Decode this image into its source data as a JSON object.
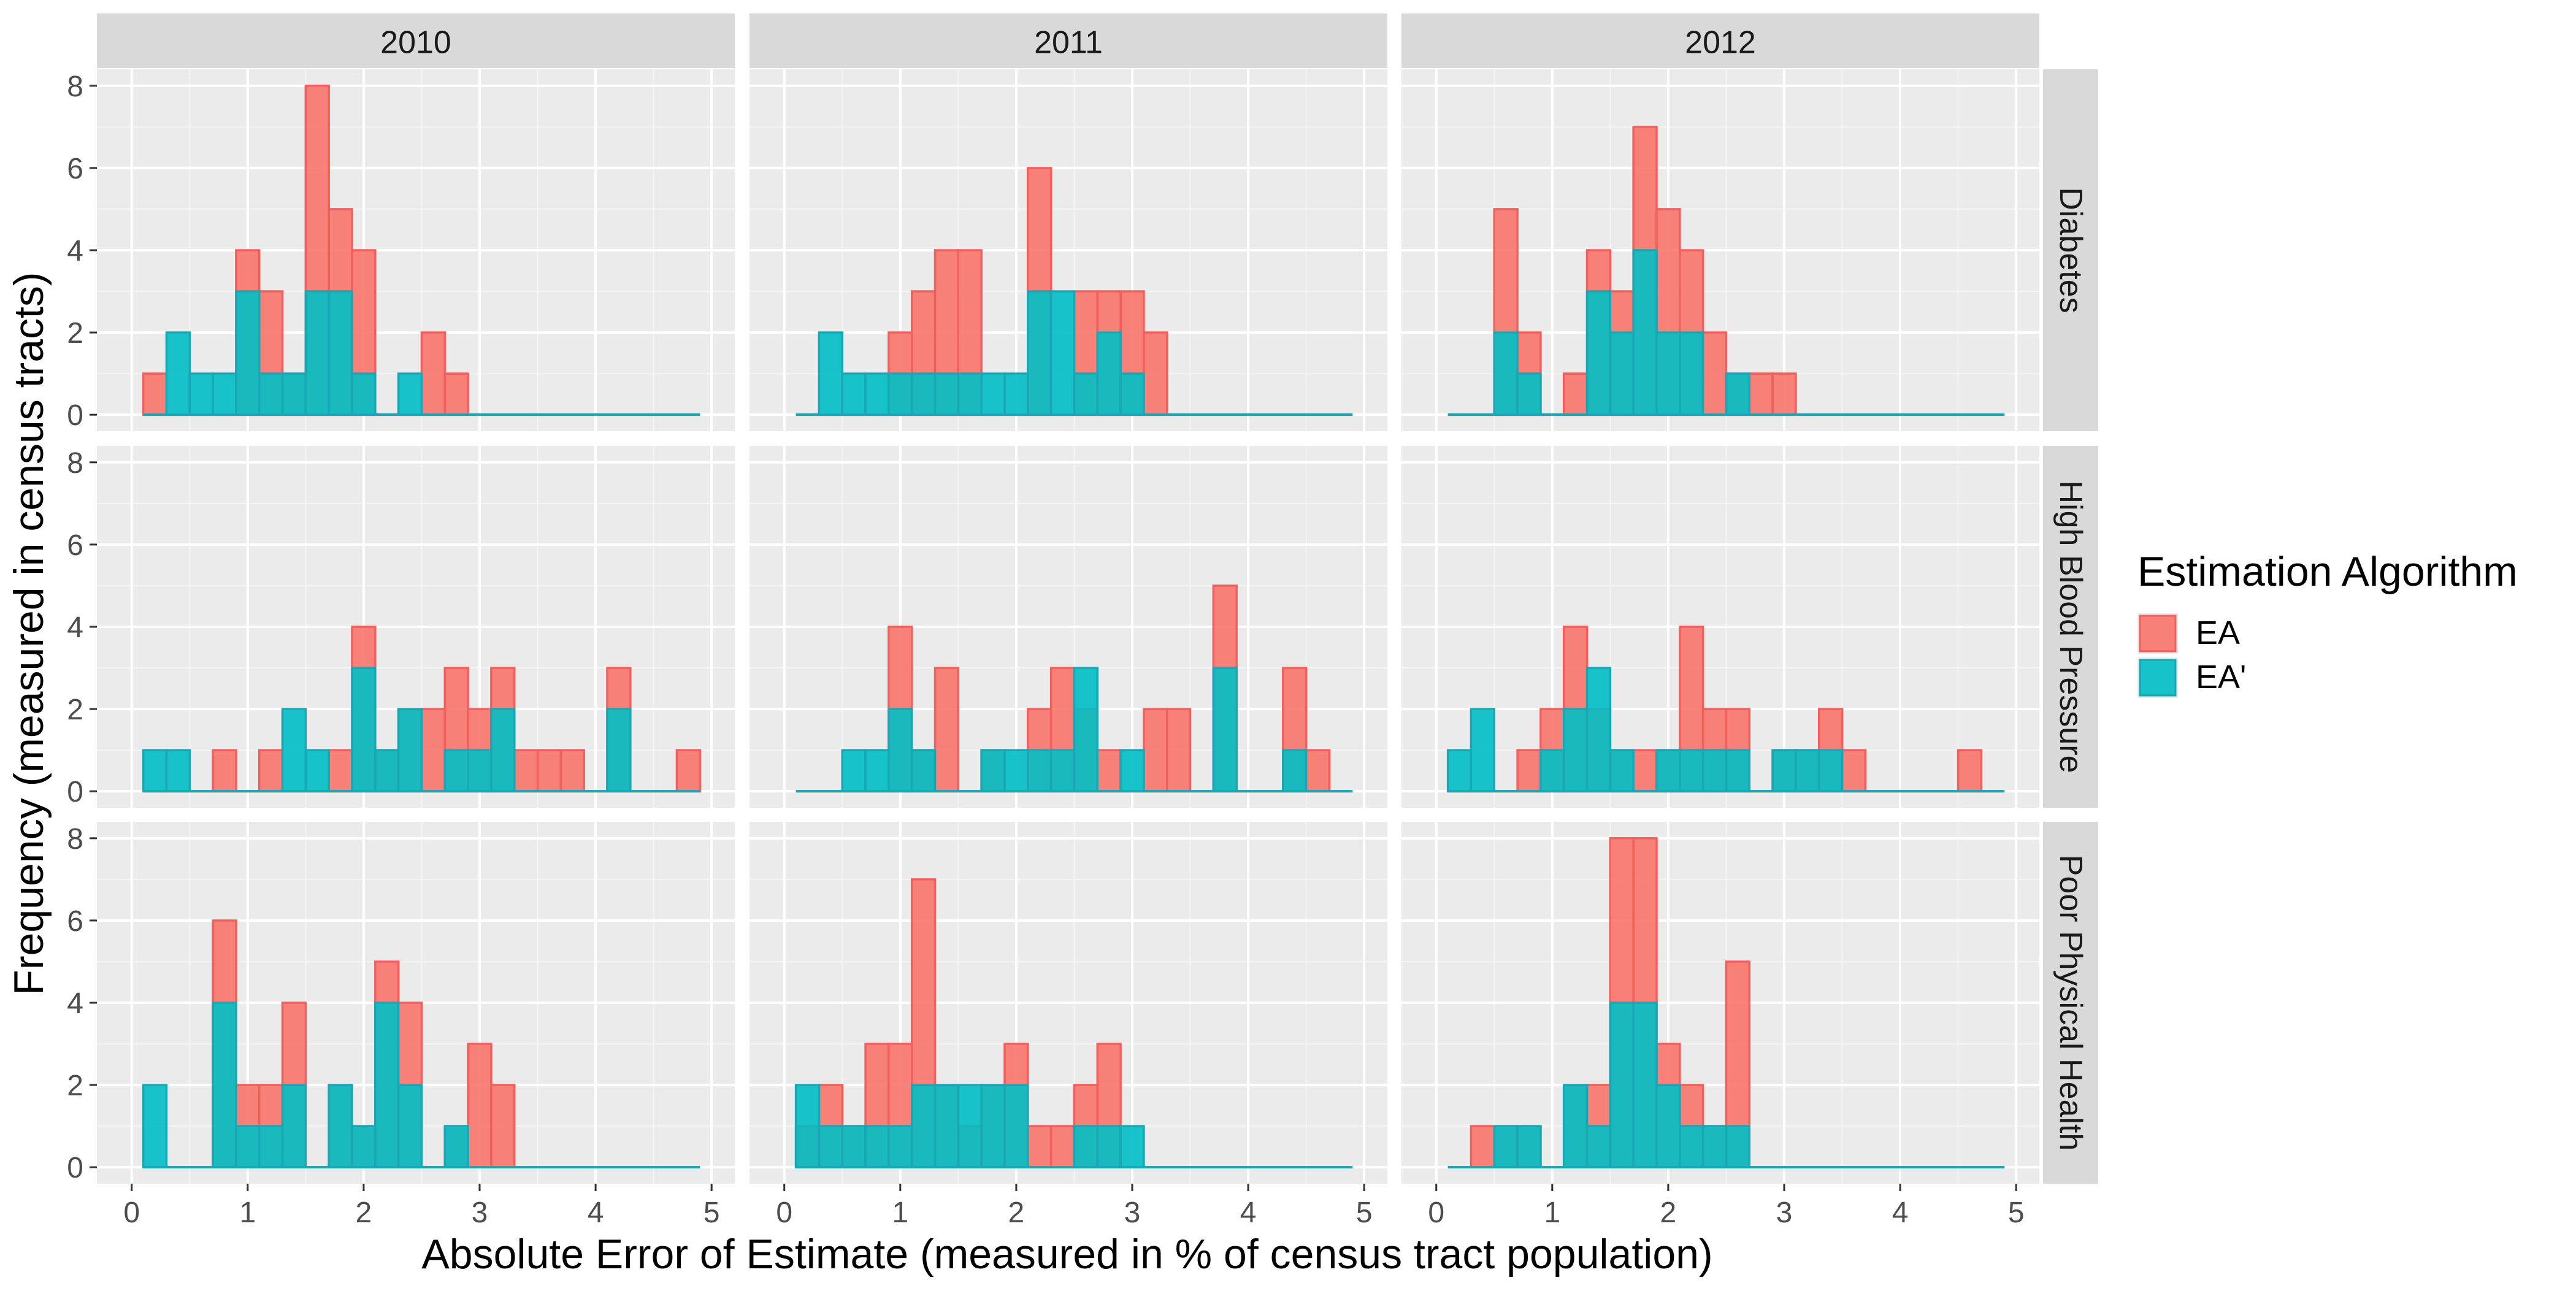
{
  "chart_data": {
    "type": "bar",
    "subtype": "faceted histogram (overlaid series)",
    "xlabel": "Absolute Error of Estimate (measured in % of census tract population)",
    "ylabel": "Frequency (measured in census tracts)",
    "xlim": [
      -0.3,
      5.2
    ],
    "ylim": [
      -0.4,
      8.4
    ],
    "x_ticks": [
      0,
      1,
      2,
      3,
      4,
      5
    ],
    "y_ticks": [
      0,
      2,
      4,
      6,
      8
    ],
    "grid": true,
    "bin_width": 0.2,
    "bin_start": 0.1,
    "bin_count": 24,
    "columns": [
      "2010",
      "2011",
      "2012"
    ],
    "rows": [
      "Diabetes",
      "High Blood Pressure",
      "Poor Physical Health"
    ],
    "legend": {
      "title": "Estimation Algorithm",
      "position": "right",
      "items": [
        {
          "label": "EA",
          "fill": "#F8766D",
          "stroke": "#F25F5C"
        },
        {
          "label": "EA'",
          "fill": "#00BFC4",
          "stroke": "#1AA7B5"
        }
      ]
    },
    "panels": [
      {
        "column": "2010",
        "row": "Diabetes",
        "EA": [
          1,
          0,
          0,
          0,
          4,
          3,
          1,
          8,
          5,
          4,
          0,
          0,
          2,
          1,
          0,
          0,
          0,
          0,
          0,
          0,
          0,
          0,
          0,
          0
        ],
        "EA'": [
          0,
          2,
          1,
          1,
          3,
          1,
          1,
          3,
          3,
          1,
          0,
          1,
          0,
          0,
          0,
          0,
          0,
          0,
          0,
          0,
          0,
          0,
          0,
          0
        ]
      },
      {
        "column": "2011",
        "row": "Diabetes",
        "EA": [
          0,
          0,
          0,
          0,
          2,
          3,
          4,
          4,
          0,
          0,
          6,
          0,
          3,
          3,
          3,
          2,
          0,
          0,
          0,
          0,
          0,
          0,
          0,
          0
        ],
        "EA'": [
          0,
          2,
          1,
          1,
          1,
          1,
          1,
          1,
          1,
          1,
          3,
          3,
          1,
          2,
          1,
          0,
          0,
          0,
          0,
          0,
          0,
          0,
          0,
          0
        ]
      },
      {
        "column": "2012",
        "row": "Diabetes",
        "EA": [
          0,
          0,
          5,
          2,
          0,
          1,
          4,
          3,
          7,
          5,
          4,
          2,
          1,
          1,
          1,
          0,
          0,
          0,
          0,
          0,
          0,
          0,
          0,
          0
        ],
        "EA'": [
          0,
          0,
          2,
          1,
          0,
          0,
          3,
          2,
          4,
          2,
          2,
          0,
          1,
          0,
          0,
          0,
          0,
          0,
          0,
          0,
          0,
          0,
          0,
          0
        ]
      },
      {
        "column": "2010",
        "row": "High Blood Pressure",
        "EA": [
          0,
          0,
          0,
          1,
          0,
          1,
          0,
          0,
          1,
          4,
          1,
          2,
          2,
          3,
          2,
          3,
          1,
          1,
          1,
          0,
          3,
          0,
          0,
          1
        ],
        "EA'": [
          1,
          1,
          0,
          0,
          0,
          0,
          2,
          1,
          0,
          3,
          1,
          2,
          0,
          1,
          1,
          2,
          0,
          0,
          0,
          0,
          2,
          0,
          0,
          0
        ]
      },
      {
        "column": "2011",
        "row": "High Blood Pressure",
        "EA": [
          0,
          0,
          0,
          0,
          4,
          1,
          3,
          0,
          1,
          0,
          2,
          3,
          2,
          1,
          0,
          2,
          2,
          0,
          5,
          0,
          0,
          3,
          1,
          0
        ],
        "EA'": [
          0,
          0,
          1,
          1,
          2,
          1,
          0,
          0,
          1,
          1,
          1,
          1,
          3,
          0,
          1,
          0,
          0,
          0,
          3,
          0,
          0,
          1,
          0,
          0
        ]
      },
      {
        "column": "2012",
        "row": "High Blood Pressure",
        "EA": [
          0,
          0,
          0,
          1,
          2,
          4,
          2,
          1,
          1,
          1,
          4,
          2,
          2,
          0,
          1,
          1,
          2,
          1,
          0,
          0,
          0,
          0,
          1,
          0
        ],
        "EA'": [
          1,
          2,
          0,
          0,
          1,
          2,
          3,
          1,
          0,
          1,
          1,
          1,
          1,
          0,
          1,
          1,
          1,
          0,
          0,
          0,
          0,
          0,
          0,
          0
        ]
      },
      {
        "column": "2010",
        "row": "Poor Physical Health",
        "EA": [
          0,
          0,
          0,
          6,
          2,
          2,
          4,
          0,
          2,
          1,
          5,
          4,
          0,
          1,
          3,
          2,
          0,
          0,
          0,
          0,
          0,
          0,
          0,
          0
        ],
        "EA'": [
          2,
          0,
          0,
          4,
          1,
          1,
          2,
          0,
          2,
          1,
          4,
          2,
          0,
          1,
          0,
          0,
          0,
          0,
          0,
          0,
          0,
          0,
          0,
          0
        ]
      },
      {
        "column": "2011",
        "row": "Poor Physical Health",
        "EA": [
          1,
          2,
          1,
          3,
          3,
          7,
          2,
          1,
          2,
          3,
          1,
          1,
          2,
          3,
          0,
          0,
          0,
          0,
          0,
          0,
          0,
          0,
          0,
          0
        ],
        "EA'": [
          2,
          1,
          1,
          1,
          1,
          2,
          2,
          2,
          2,
          2,
          0,
          0,
          1,
          1,
          1,
          0,
          0,
          0,
          0,
          0,
          0,
          0,
          0,
          0
        ]
      },
      {
        "column": "2012",
        "row": "Poor Physical Health",
        "EA": [
          0,
          1,
          1,
          1,
          0,
          2,
          2,
          8,
          8,
          3,
          2,
          1,
          5,
          0,
          0,
          0,
          0,
          0,
          0,
          0,
          0,
          0,
          0,
          0
        ],
        "EA'": [
          0,
          0,
          1,
          1,
          0,
          2,
          1,
          4,
          4,
          2,
          1,
          1,
          1,
          0,
          0,
          0,
          0,
          0,
          0,
          0,
          0,
          0,
          0,
          0
        ]
      }
    ]
  }
}
